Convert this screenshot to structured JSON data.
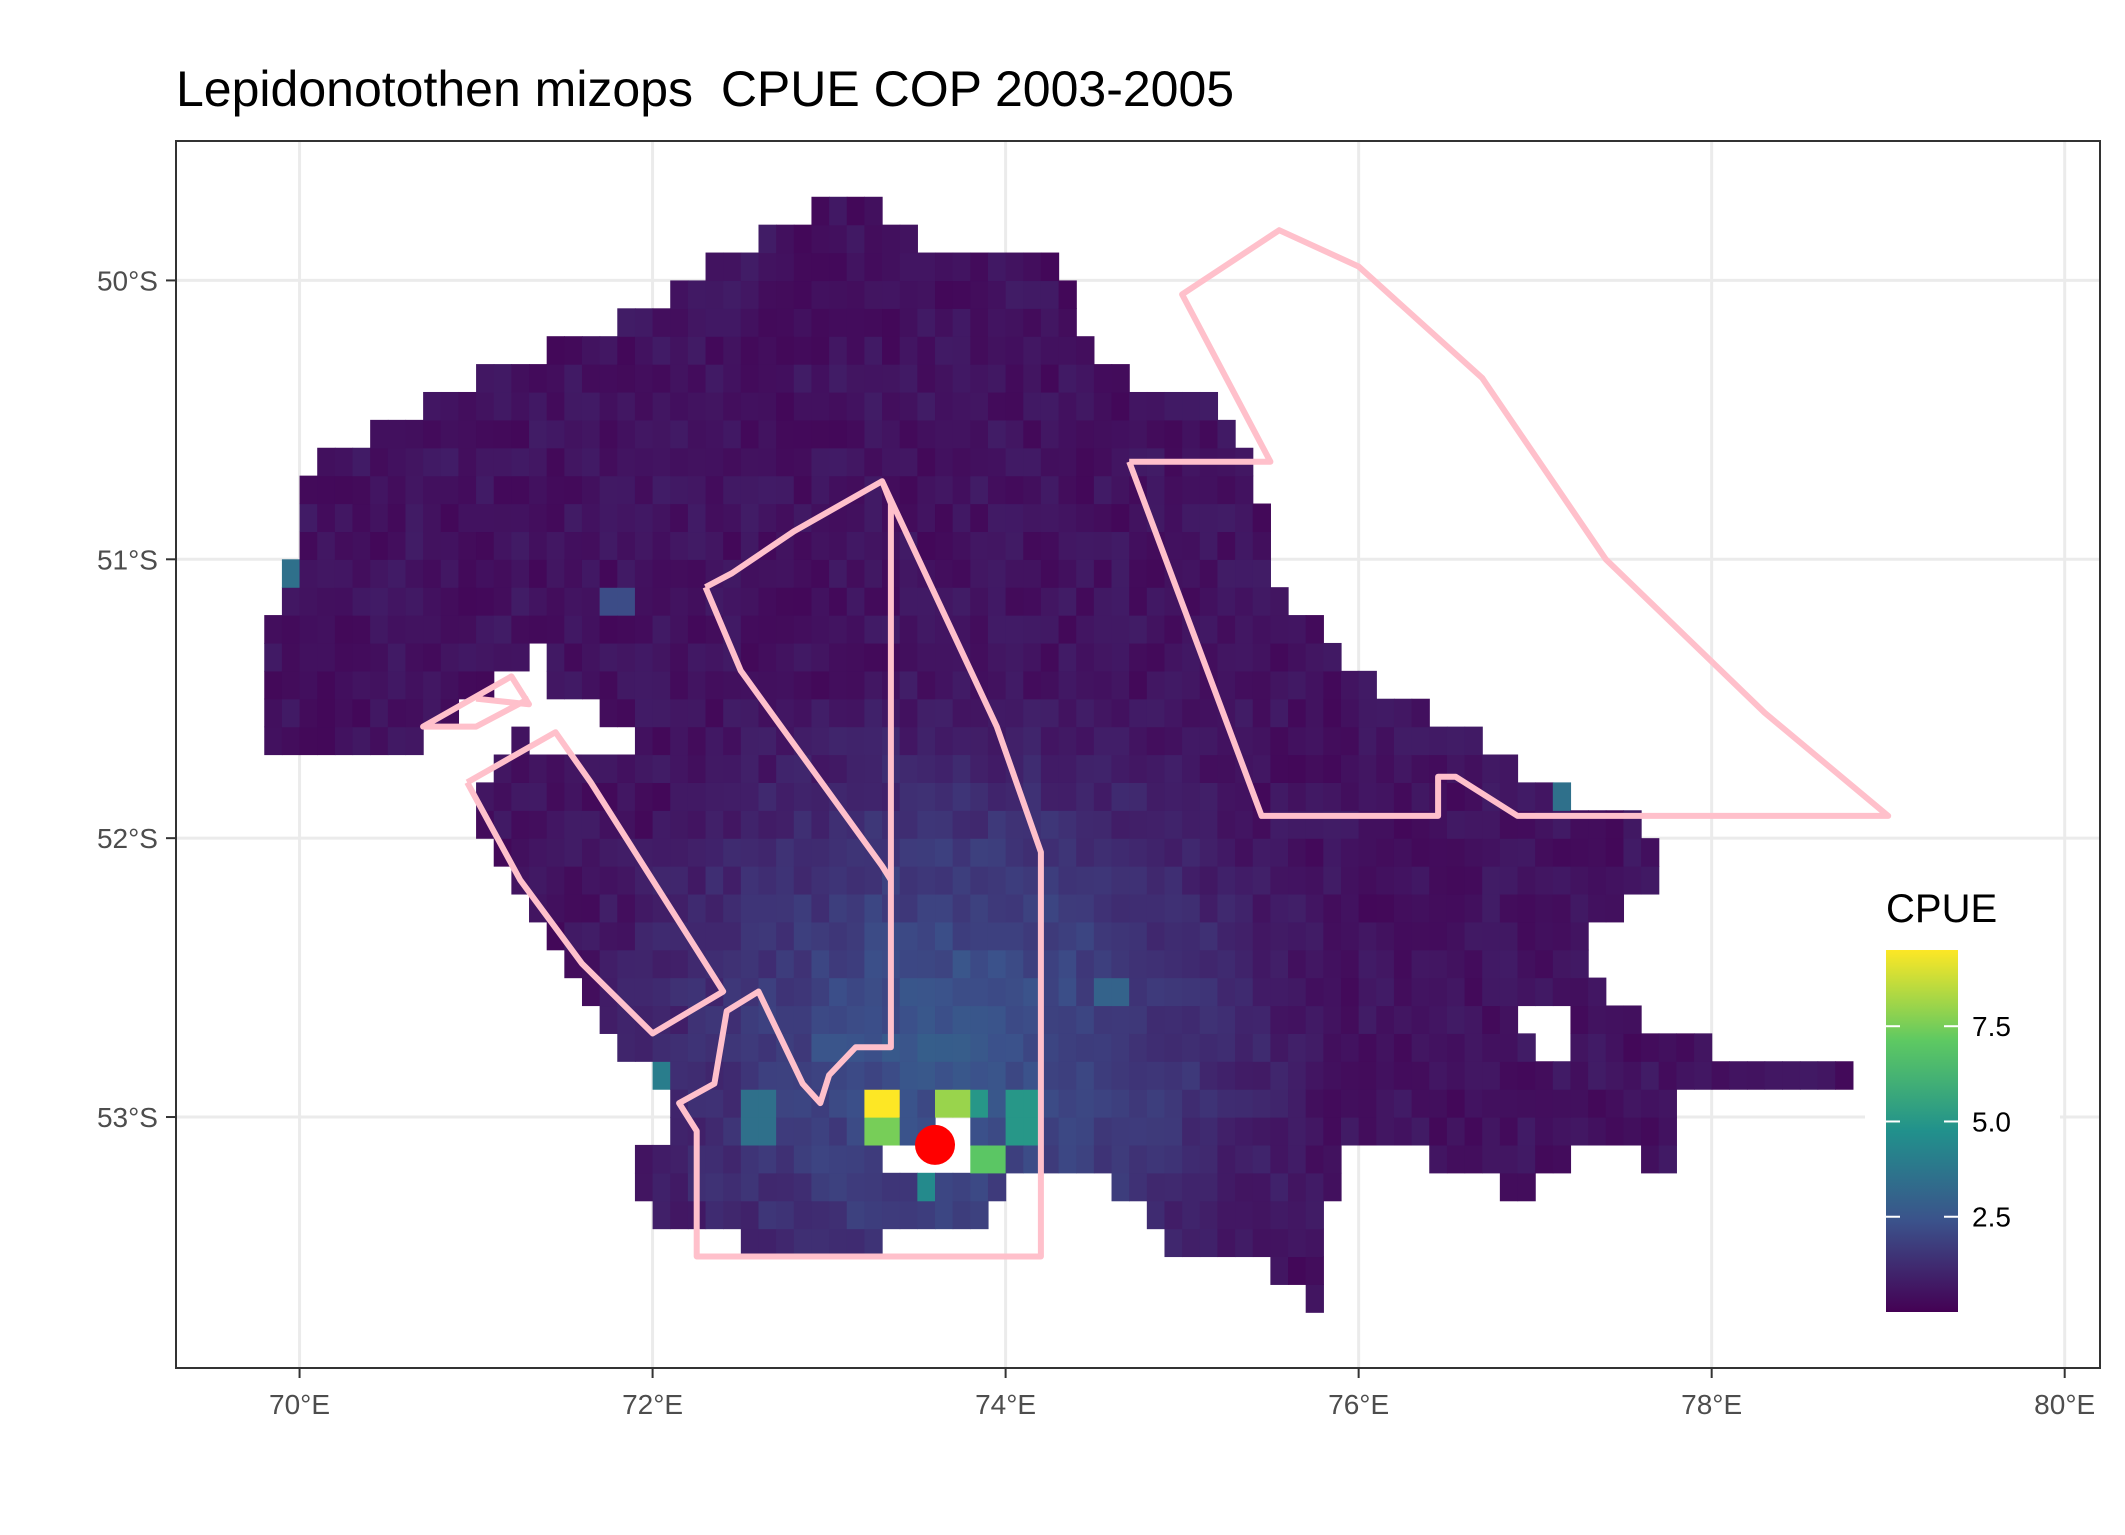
{
  "title": "Lepidonotothen mizops  CPUE COP 2003-2005",
  "chart_data": {
    "type": "heatmap",
    "title": "Lepidonotothen mizops  CPUE COP 2003-2005",
    "xlabel": "",
    "ylabel": "",
    "x_ticks": [
      {
        "value": 70,
        "label": "70°E"
      },
      {
        "value": 72,
        "label": "72°E"
      },
      {
        "value": 74,
        "label": "74°E"
      },
      {
        "value": 76,
        "label": "76°E"
      },
      {
        "value": 78,
        "label": "78°E"
      },
      {
        "value": 80,
        "label": "80°E"
      }
    ],
    "y_ticks": [
      {
        "value": -50,
        "label": "50°S"
      },
      {
        "value": -51,
        "label": "51°S"
      },
      {
        "value": -52,
        "label": "52°S"
      },
      {
        "value": -53,
        "label": "53°S"
      }
    ],
    "xlim": [
      69.3,
      80.2
    ],
    "ylim": [
      -53.9,
      -49.5
    ],
    "grid": true,
    "legend": {
      "title": "CPUE",
      "placement": "right",
      "ticks": [
        {
          "value": 2.5,
          "label": "2.5"
        },
        {
          "value": 5.0,
          "label": "5.0"
        },
        {
          "value": 7.5,
          "label": "7.5"
        }
      ],
      "range": [
        0,
        9.5
      ],
      "palette": [
        "#440154",
        "#3b528b",
        "#21918c",
        "#5ec962",
        "#fde725"
      ]
    },
    "cell_size_deg": {
      "lon": 0.1,
      "lat": 0.1
    },
    "base_region": [
      [
        69.8,
        -51.7
      ],
      [
        69.8,
        -51.3
      ],
      [
        69.95,
        -51.0
      ],
      [
        70.05,
        -50.7
      ],
      [
        70.2,
        -50.6
      ],
      [
        70.5,
        -50.5
      ],
      [
        70.8,
        -50.4
      ],
      [
        71.2,
        -50.3
      ],
      [
        71.6,
        -50.2
      ],
      [
        72.1,
        -50.05
      ],
      [
        72.4,
        -49.9
      ],
      [
        72.6,
        -49.85
      ],
      [
        72.9,
        -49.75
      ],
      [
        73.1,
        -49.7
      ],
      [
        73.4,
        -49.8
      ],
      [
        73.8,
        -49.95
      ],
      [
        74.0,
        -49.9
      ],
      [
        74.3,
        -49.9
      ],
      [
        74.4,
        -50.2
      ],
      [
        74.6,
        -50.3
      ],
      [
        74.7,
        -50.4
      ],
      [
        75.0,
        -50.4
      ],
      [
        75.3,
        -50.5
      ],
      [
        75.4,
        -50.7
      ],
      [
        75.5,
        -51.0
      ],
      [
        75.6,
        -51.2
      ],
      [
        75.8,
        -51.25
      ],
      [
        76.0,
        -51.4
      ],
      [
        76.2,
        -51.5
      ],
      [
        76.5,
        -51.6
      ],
      [
        76.8,
        -51.7
      ],
      [
        77.0,
        -51.8
      ],
      [
        77.3,
        -51.9
      ],
      [
        77.6,
        -51.95
      ],
      [
        77.7,
        -52.1
      ],
      [
        77.7,
        -52.2
      ],
      [
        77.3,
        -52.3
      ],
      [
        77.2,
        -52.4
      ],
      [
        77.4,
        -52.6
      ],
      [
        77.7,
        -52.7
      ],
      [
        78.0,
        -52.75
      ],
      [
        78.5,
        -52.75
      ],
      [
        78.8,
        -52.8
      ],
      [
        78.8,
        -52.9
      ],
      [
        78.3,
        -52.9
      ],
      [
        77.8,
        -52.95
      ],
      [
        77.8,
        -53.2
      ],
      [
        77.3,
        -53.1
      ],
      [
        77.0,
        -53.2
      ],
      [
        77.0,
        -53.3
      ],
      [
        76.6,
        -53.2
      ],
      [
        76.1,
        -53.1
      ],
      [
        75.9,
        -53.1
      ],
      [
        75.8,
        -53.4
      ],
      [
        75.8,
        -53.7
      ],
      [
        75.6,
        -53.6
      ],
      [
        75.3,
        -53.45
      ],
      [
        74.9,
        -53.5
      ],
      [
        74.7,
        -53.3
      ],
      [
        74.4,
        -53.2
      ],
      [
        74.0,
        -53.25
      ],
      [
        73.8,
        -53.4
      ],
      [
        73.3,
        -53.45
      ],
      [
        72.9,
        -53.45
      ],
      [
        72.5,
        -53.45
      ],
      [
        72.0,
        -53.35
      ],
      [
        71.9,
        -53.3
      ],
      [
        71.9,
        -53.1
      ],
      [
        72.2,
        -53.0
      ],
      [
        72.0,
        -52.85
      ],
      [
        71.8,
        -52.75
      ],
      [
        71.6,
        -52.6
      ],
      [
        71.4,
        -52.4
      ],
      [
        71.2,
        -52.2
      ],
      [
        71.0,
        -52.0
      ],
      [
        70.95,
        -51.85
      ],
      [
        71.1,
        -51.75
      ],
      [
        71.3,
        -51.6
      ],
      [
        71.45,
        -51.4
      ],
      [
        71.3,
        -51.3
      ],
      [
        71.2,
        -51.4
      ],
      [
        71.0,
        -51.5
      ],
      [
        70.6,
        -51.7
      ],
      [
        70.2,
        -51.7
      ]
    ],
    "holes": [
      [
        [
          71.3,
          -51.55
        ],
        [
          71.6,
          -51.5
        ],
        [
          71.8,
          -51.6
        ],
        [
          71.9,
          -51.7
        ],
        [
          71.7,
          -51.75
        ],
        [
          71.35,
          -51.7
        ]
      ],
      [
        [
          76.9,
          -52.6
        ],
        [
          77.2,
          -52.6
        ],
        [
          77.2,
          -52.75
        ],
        [
          76.95,
          -52.75
        ]
      ]
    ],
    "hotspots": [
      {
        "lon": 73.3,
        "lat": -53.0,
        "cpue": 9.5
      },
      {
        "lon": 73.7,
        "lat": -52.95,
        "cpue": 8.0
      },
      {
        "lon": 73.3,
        "lat": -53.05,
        "cpue": 7.5
      },
      {
        "lon": 73.9,
        "lat": -53.15,
        "cpue": 7.0
      },
      {
        "lon": 73.85,
        "lat": -52.95,
        "cpue": 5.0
      },
      {
        "lon": 74.1,
        "lat": -53.0,
        "cpue": 5.0
      },
      {
        "lon": 73.55,
        "lat": -53.2,
        "cpue": 4.5
      },
      {
        "lon": 73.45,
        "lat": -53.15,
        "cpue": 5.0
      },
      {
        "lon": 72.6,
        "lat": -53.0,
        "cpue": 3.5
      },
      {
        "lon": 72.05,
        "lat": -52.9,
        "cpue": 4.0
      },
      {
        "lon": 75.9,
        "lat": -51.25,
        "cpue": 4.5
      },
      {
        "lon": 77.2,
        "lat": -51.85,
        "cpue": 3.5
      },
      {
        "lon": 77.8,
        "lat": -51.95,
        "cpue": 4.0
      },
      {
        "lon": 71.05,
        "lat": -51.55,
        "cpue": 4.0
      },
      {
        "lon": 69.95,
        "lat": -51.05,
        "cpue": 3.5
      },
      {
        "lon": 74.6,
        "lat": -52.55,
        "cpue": 3.0
      },
      {
        "lon": 73.0,
        "lat": -52.75,
        "cpue": 2.5
      },
      {
        "lon": 71.8,
        "lat": -51.15,
        "cpue": 2.2
      }
    ],
    "gradient_center": {
      "lon": 73.7,
      "lat": -52.75
    },
    "white_patch": [
      [
        73.25,
        -53.05
      ],
      [
        73.25,
        -53.15
      ],
      [
        73.35,
        -53.15
      ],
      [
        73.35,
        -53.2
      ],
      [
        73.75,
        -53.2
      ],
      [
        73.75,
        -53.1
      ],
      [
        73.95,
        -53.1
      ],
      [
        73.95,
        -53.05
      ],
      [
        73.8,
        -53.05
      ],
      [
        73.8,
        -53.0
      ],
      [
        73.55,
        -53.0
      ],
      [
        73.55,
        -53.05
      ]
    ],
    "marker": {
      "lon": 73.6,
      "lat": -53.1,
      "color": "#ff0000"
    },
    "outline_color": "#ffc0cb",
    "outlines": [
      [
        [
          71.0,
          -51.5
        ],
        [
          71.3,
          -51.52
        ],
        [
          71.2,
          -51.42
        ],
        [
          70.7,
          -51.6
        ],
        [
          71.0,
          -51.6
        ],
        [
          71.3,
          -51.5
        ]
      ],
      [
        [
          70.95,
          -51.8
        ],
        [
          71.45,
          -51.62
        ],
        [
          71.65,
          -51.8
        ],
        [
          72.4,
          -52.55
        ],
        [
          72.0,
          -52.7
        ],
        [
          71.6,
          -52.45
        ],
        [
          71.25,
          -52.15
        ],
        [
          70.95,
          -51.8
        ]
      ],
      [
        [
          72.3,
          -51.1
        ],
        [
          72.45,
          -51.05
        ],
        [
          72.8,
          -50.9
        ],
        [
          73.3,
          -50.72
        ],
        [
          73.35,
          -50.8
        ],
        [
          73.35,
          -52.15
        ],
        [
          73.35,
          -52.75
        ],
        [
          73.15,
          -52.75
        ],
        [
          73.0,
          -52.85
        ],
        [
          72.95,
          -52.95
        ],
        [
          72.85,
          -52.88
        ],
        [
          72.6,
          -52.55
        ],
        [
          72.42,
          -52.62
        ],
        [
          72.35,
          -52.88
        ],
        [
          72.15,
          -52.95
        ],
        [
          72.25,
          -53.05
        ],
        [
          72.25,
          -53.5
        ],
        [
          74.2,
          -53.5
        ],
        [
          74.2,
          -52.05
        ],
        [
          73.95,
          -51.6
        ],
        [
          73.3,
          -50.72
        ]
      ],
      [
        [
          72.3,
          -51.1
        ],
        [
          72.5,
          -51.4
        ],
        [
          73.3,
          -52.1
        ],
        [
          73.35,
          -52.15
        ]
      ],
      [
        [
          74.7,
          -50.65
        ],
        [
          75.5,
          -50.65
        ],
        [
          75.0,
          -50.05
        ],
        [
          75.55,
          -49.82
        ],
        [
          76.0,
          -49.95
        ],
        [
          76.7,
          -50.35
        ],
        [
          77.4,
          -51.0
        ],
        [
          78.3,
          -51.55
        ],
        [
          79.0,
          -51.92
        ],
        [
          76.9,
          -51.92
        ],
        [
          76.55,
          -51.78
        ],
        [
          76.45,
          -51.78
        ],
        [
          76.45,
          -51.92
        ],
        [
          75.45,
          -51.92
        ],
        [
          74.7,
          -50.65
        ]
      ]
    ]
  }
}
